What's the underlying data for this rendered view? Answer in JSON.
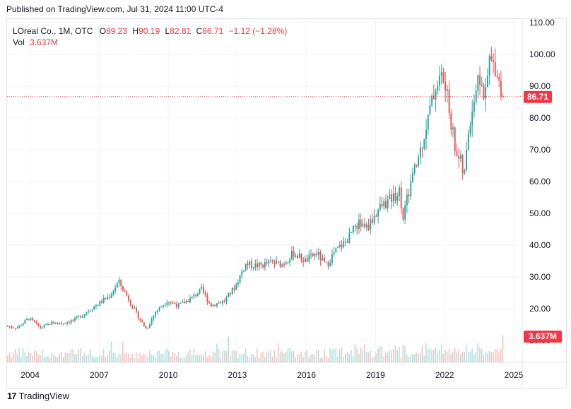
{
  "header": {
    "published": "Published on TradingView.com, Jul 31, 2024 11:00 UTC-4"
  },
  "legend": {
    "symbol": "LOreal Co., 1M, OTC",
    "o_label": "O",
    "o_value": "89.23",
    "h_label": "H",
    "h_value": "90.19",
    "l_label": "L",
    "l_value": "82.81",
    "c_label": "C",
    "c_value": "86.71",
    "change": "−1.12 (−1.28%)",
    "vol_label": "Vol",
    "vol_value": "3.637M"
  },
  "footer": {
    "brand": "TradingView",
    "logo_glyph": "17"
  },
  "colors": {
    "up": "#26a69a",
    "down": "#ef5350",
    "price_tag": "#f23645",
    "grid": "#f0f3fa"
  },
  "chart_data": {
    "type": "candlestick",
    "interval": "1M",
    "price_axis": {
      "min": 10,
      "max": 110,
      "ticks": [
        "110.00",
        "100.00",
        "90.00",
        "80.00",
        "70.00",
        "60.00",
        "50.00",
        "40.00",
        "30.00",
        "20.00",
        "10.00"
      ]
    },
    "time_axis": {
      "start": 2003.0,
      "end": 2025.0,
      "ticks": [
        {
          "label": "2004",
          "year": 2004
        },
        {
          "label": "2007",
          "year": 2007
        },
        {
          "label": "2010",
          "year": 2010
        },
        {
          "label": "2013",
          "year": 2013
        },
        {
          "label": "2016",
          "year": 2016
        },
        {
          "label": "2019",
          "year": 2019
        },
        {
          "label": "2022",
          "year": 2022
        },
        {
          "label": "2025",
          "year": 2025
        }
      ]
    },
    "last_price": {
      "value": 86.71,
      "label": "86.71"
    },
    "last_volume": {
      "label": "3.637M"
    },
    "price_path": [
      [
        2003.0,
        14.5
      ],
      [
        2003.5,
        14.0
      ],
      [
        2004.0,
        17.0
      ],
      [
        2004.5,
        14.0
      ],
      [
        2005.0,
        15.5
      ],
      [
        2005.5,
        15.5
      ],
      [
        2006.0,
        16.5
      ],
      [
        2006.5,
        19.0
      ],
      [
        2007.0,
        21.5
      ],
      [
        2007.5,
        24.0
      ],
      [
        2007.9,
        28.5
      ],
      [
        2008.3,
        23.5
      ],
      [
        2008.7,
        18.0
      ],
      [
        2009.1,
        13.5
      ],
      [
        2009.5,
        19.0
      ],
      [
        2010.0,
        22.5
      ],
      [
        2010.5,
        21.0
      ],
      [
        2011.0,
        23.0
      ],
      [
        2011.5,
        26.0
      ],
      [
        2011.9,
        21.0
      ],
      [
        2012.5,
        22.5
      ],
      [
        2013.0,
        27.5
      ],
      [
        2013.4,
        34.0
      ],
      [
        2014.0,
        33.5
      ],
      [
        2014.5,
        34.5
      ],
      [
        2015.0,
        34.0
      ],
      [
        2015.5,
        37.5
      ],
      [
        2016.0,
        35.0
      ],
      [
        2016.5,
        37.5
      ],
      [
        2016.9,
        33.5
      ],
      [
        2017.3,
        38.0
      ],
      [
        2017.8,
        41.5
      ],
      [
        2018.3,
        47.0
      ],
      [
        2018.7,
        45.5
      ],
      [
        2019.2,
        51.5
      ],
      [
        2019.7,
        54.5
      ],
      [
        2020.1,
        57.0
      ],
      [
        2020.25,
        49.0
      ],
      [
        2020.6,
        60.0
      ],
      [
        2020.9,
        67.0
      ],
      [
        2021.3,
        79.0
      ],
      [
        2021.7,
        91.0
      ],
      [
        2021.95,
        93.5
      ],
      [
        2022.2,
        85.0
      ],
      [
        2022.5,
        71.0
      ],
      [
        2022.75,
        66.0
      ],
      [
        2022.9,
        61.0
      ],
      [
        2023.1,
        77.0
      ],
      [
        2023.4,
        89.0
      ],
      [
        2023.6,
        93.0
      ],
      [
        2023.8,
        85.0
      ],
      [
        2024.0,
        98.0
      ],
      [
        2024.3,
        96.0
      ],
      [
        2024.5,
        88.5
      ],
      [
        2024.58,
        86.71
      ]
    ]
  }
}
